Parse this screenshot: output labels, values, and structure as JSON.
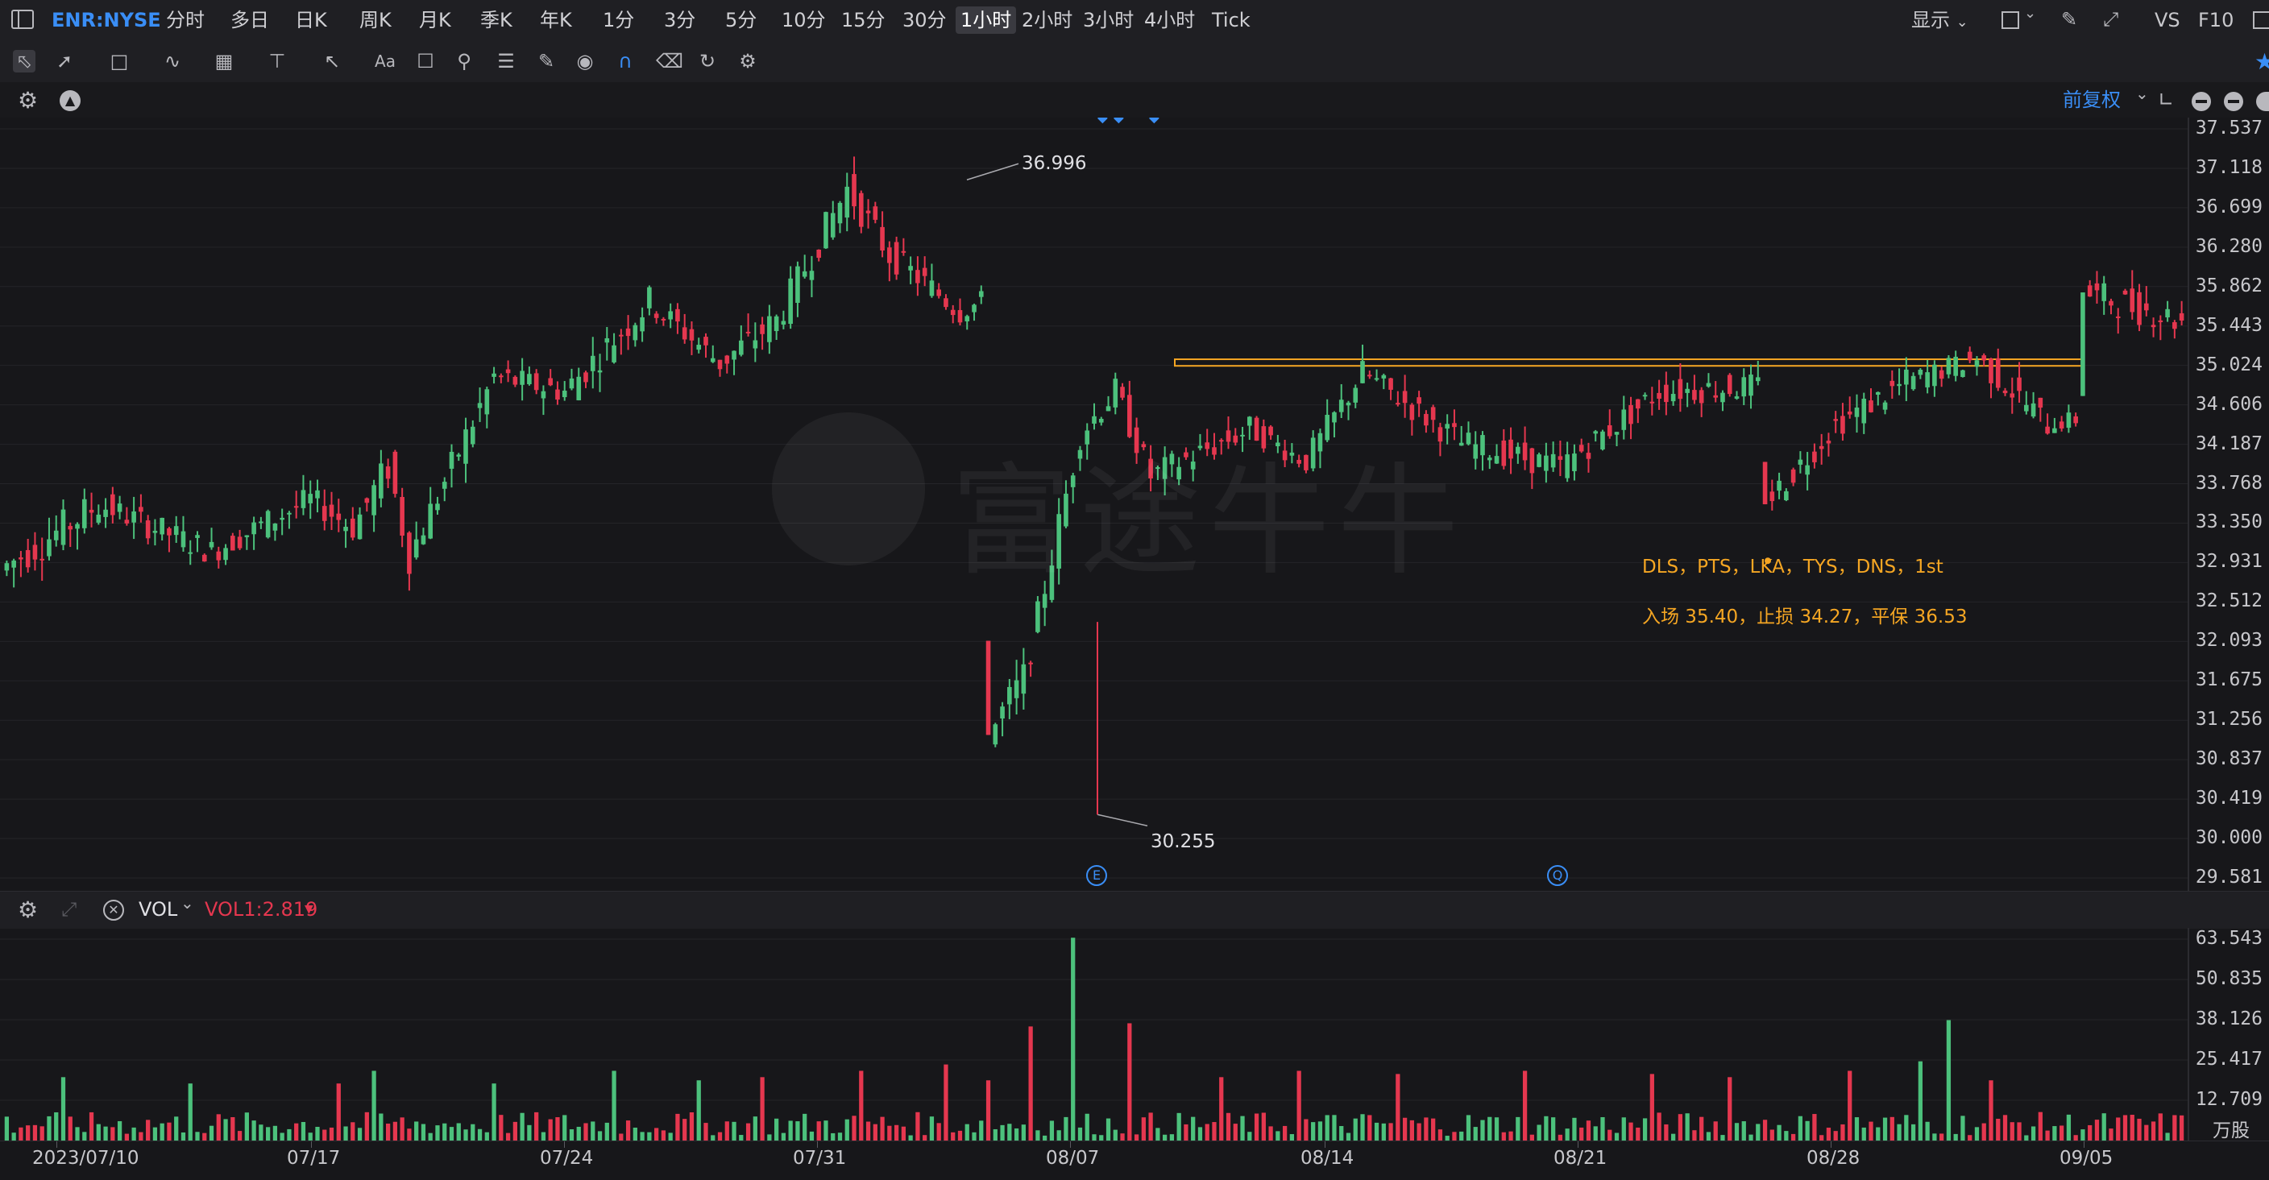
{
  "topbar": {
    "symbol": "ENR:NYSE",
    "intervals": [
      "分时",
      "多日",
      "日K",
      "周K",
      "月K",
      "季K",
      "年K",
      "1分",
      "3分",
      "5分",
      "10分",
      "15分",
      "30分",
      "1小时",
      "2小时",
      "3小时",
      "4小时",
      "Tick"
    ],
    "active_interval": "1小时",
    "display_label": "显示",
    "vs_label": "VS",
    "f10_label": "F10"
  },
  "toolbar": {
    "icons": [
      "cursor-icon",
      "trendline-icon",
      "rectangle-icon",
      "wave-icon",
      "fib-icon",
      "measure-icon",
      "arrow-icon",
      "text-icon",
      "comment-icon",
      "zoom-icon",
      "pattern-icon",
      "brush-icon",
      "eye-icon",
      "magnet-icon",
      "trash-icon",
      "sync-icon",
      "settings-icon"
    ],
    "text_tool_label": "Aa"
  },
  "main_header": {
    "adjust_label": "前复权"
  },
  "volume_header": {
    "indicator": "VOL",
    "value_label": "VOL1:2.819"
  },
  "watermark": "富途牛牛",
  "colors": {
    "up": "#4cc17c",
    "down": "#e5374f",
    "accent": "#3a8ef6",
    "annotation": "#f5a623",
    "background": "#17171a"
  },
  "chart_data": [
    {
      "type": "candlestick",
      "interval": "1小时",
      "y_ticks": [
        "37.537",
        "37.118",
        "36.699",
        "36.280",
        "35.862",
        "35.443",
        "35.024",
        "34.606",
        "34.187",
        "33.768",
        "33.350",
        "32.931",
        "32.512",
        "32.093",
        "31.675",
        "31.256",
        "30.837",
        "30.419",
        "30.000",
        "29.581"
      ],
      "ylim": [
        29.581,
        37.537
      ],
      "x_ticks": [
        "2023/07/10",
        "07/17",
        "07/24",
        "07/31",
        "08/07",
        "08/14",
        "08/21",
        "08/28",
        "09/05"
      ],
      "high_label": "36.996",
      "low_label": "30.255",
      "annotations": {
        "line1": "DLS，PTS，LKA，TYS，DNS，1st",
        "line2": "入场 35.40，止损 34.27，平保 36.53"
      },
      "resistance_zone": [
        35.02,
        35.09
      ],
      "event_markers": [
        "E",
        "Q"
      ],
      "segments": [
        {
          "bars": 14,
          "open": 32.85,
          "close": 33.55,
          "vol": 0.4
        },
        {
          "bars": 16,
          "open": 33.55,
          "close": 33.05,
          "vol": 0.3
        },
        {
          "bars": 14,
          "open": 33.05,
          "close": 33.6,
          "vol": 0.3
        },
        {
          "bars": 6,
          "open": 33.6,
          "close": 33.3,
          "vol": 0.3
        },
        {
          "bars": 5,
          "open": 33.3,
          "close": 33.95,
          "vol": 0.4
        },
        {
          "bars": 3,
          "open": 33.95,
          "close": 33.0,
          "vol": 0.4
        },
        {
          "bars": 12,
          "open": 33.0,
          "close": 34.9,
          "vol": 0.35
        },
        {
          "bars": 10,
          "open": 34.9,
          "close": 34.75,
          "vol": 0.3
        },
        {
          "bars": 12,
          "open": 34.75,
          "close": 35.7,
          "vol": 0.35
        },
        {
          "bars": 10,
          "open": 35.7,
          "close": 35.05,
          "vol": 0.3
        },
        {
          "bars": 8,
          "open": 35.05,
          "close": 35.5,
          "vol": 0.35
        },
        {
          "bars": 10,
          "open": 35.5,
          "close": 36.9,
          "vol": 0.35
        },
        {
          "bars": 6,
          "open": 36.9,
          "close": 36.2,
          "vol": 0.35
        },
        {
          "bars": 10,
          "open": 36.2,
          "close": 35.6,
          "vol": 0.3
        },
        {
          "bars": 3,
          "open": 35.6,
          "close": 35.7,
          "vol": 0.25
        },
        {
          "bars": 1,
          "open": 32.1,
          "close": 31.1,
          "vol": 0.0
        },
        {
          "bars": 5,
          "open": 31.1,
          "close": 31.7,
          "vol": 0.4
        },
        {
          "bars": 8,
          "open": 31.7,
          "close": 34.3,
          "vol": 0.35
        },
        {
          "bars": 5,
          "open": 34.3,
          "close": 34.75,
          "vol": 0.3
        },
        {
          "bars": 5,
          "open": 34.75,
          "close": 33.85,
          "vol": 0.3
        },
        {
          "bars": 14,
          "open": 33.85,
          "close": 34.35,
          "vol": 0.3
        },
        {
          "bars": 8,
          "open": 34.35,
          "close": 34.0,
          "vol": 0.25
        },
        {
          "bars": 8,
          "open": 34.0,
          "close": 34.95,
          "vol": 0.3
        },
        {
          "bars": 14,
          "open": 34.95,
          "close": 34.2,
          "vol": 0.3
        },
        {
          "bars": 14,
          "open": 34.2,
          "close": 33.95,
          "vol": 0.3
        },
        {
          "bars": 14,
          "open": 33.95,
          "close": 34.75,
          "vol": 0.3
        },
        {
          "bars": 14,
          "open": 34.75,
          "close": 34.8,
          "vol": 0.3
        },
        {
          "bars": 1,
          "open": 34.0,
          "close": 33.55,
          "vol": 0.0
        },
        {
          "bars": 10,
          "open": 33.55,
          "close": 34.4,
          "vol": 0.3
        },
        {
          "bars": 10,
          "open": 34.4,
          "close": 34.85,
          "vol": 0.3
        },
        {
          "bars": 10,
          "open": 34.85,
          "close": 35.1,
          "vol": 0.25
        },
        {
          "bars": 10,
          "open": 35.1,
          "close": 34.4,
          "vol": 0.3
        },
        {
          "bars": 4,
          "open": 34.4,
          "close": 34.45,
          "vol": 0.2
        },
        {
          "bars": 1,
          "open": 34.7,
          "close": 35.8,
          "vol": 0.0
        },
        {
          "bars": 14,
          "open": 35.8,
          "close": 35.5,
          "vol": 0.35
        }
      ]
    },
    {
      "type": "bar",
      "name": "VOL",
      "unit": "万股",
      "y_ticks": [
        "63.543",
        "50.835",
        "38.126",
        "25.417",
        "12.709"
      ],
      "ylim": [
        0,
        63.543
      ],
      "spikes": [
        {
          "bar": 8,
          "value": 20
        },
        {
          "bar": 26,
          "value": 18
        },
        {
          "bar": 47,
          "value": 18
        },
        {
          "bar": 52,
          "value": 22
        },
        {
          "bar": 69,
          "value": 18
        },
        {
          "bar": 86,
          "value": 22
        },
        {
          "bar": 98,
          "value": 19
        },
        {
          "bar": 107,
          "value": 20
        },
        {
          "bar": 121,
          "value": 22
        },
        {
          "bar": 133,
          "value": 24
        },
        {
          "bar": 139,
          "value": 19
        },
        {
          "bar": 145,
          "value": 36
        },
        {
          "bar": 151,
          "value": 64
        },
        {
          "bar": 159,
          "value": 37
        },
        {
          "bar": 172,
          "value": 20
        },
        {
          "bar": 183,
          "value": 22
        },
        {
          "bar": 197,
          "value": 21
        },
        {
          "bar": 215,
          "value": 22
        },
        {
          "bar": 233,
          "value": 21
        },
        {
          "bar": 244,
          "value": 20
        },
        {
          "bar": 261,
          "value": 22
        },
        {
          "bar": 271,
          "value": 25
        },
        {
          "bar": 275,
          "value": 38
        },
        {
          "bar": 281,
          "value": 19
        }
      ]
    }
  ]
}
